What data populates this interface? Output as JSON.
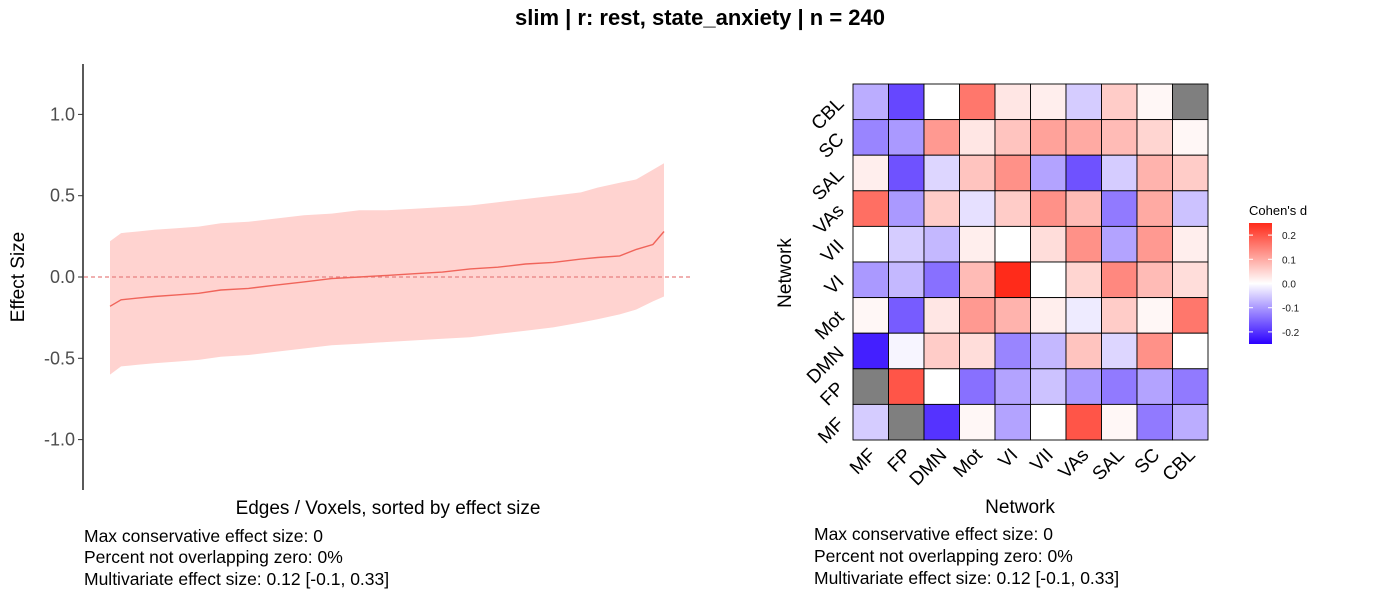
{
  "page_title": "slim | r: rest, state_anxiety | n = 240",
  "colors": {
    "ribbon": "#ffd3d0",
    "line": "#f0645a",
    "zero_line": "#e88080",
    "neg": "#2b00ff",
    "pos": "#ff2b1a",
    "na": "#7f7f7f"
  },
  "chart_data": [
    {
      "type": "line",
      "panel": "sorted effect sizes",
      "xlabel": "Edges / Voxels, sorted by effect size",
      "ylabel": "Effect Size",
      "ylim": [
        -1.3,
        1.3
      ],
      "yticks": [
        1.0,
        0.5,
        0.0,
        -0.5,
        -1.0
      ],
      "ytick_labels": [
        "1.0",
        "0.5",
        "0.0",
        "-0.5",
        "-1.0"
      ],
      "reference_line": 0,
      "grid": false,
      "series": [
        {
          "role": "estimate",
          "x": [
            0,
            0.02,
            0.05,
            0.08,
            0.12,
            0.16,
            0.2,
            0.25,
            0.3,
            0.35,
            0.4,
            0.45,
            0.5,
            0.55,
            0.6,
            0.65,
            0.7,
            0.75,
            0.8,
            0.85,
            0.88,
            0.92,
            0.95,
            0.98,
            1
          ],
          "y": [
            -0.18,
            -0.14,
            -0.13,
            -0.12,
            -0.11,
            -0.1,
            -0.08,
            -0.07,
            -0.05,
            -0.03,
            -0.01,
            0.0,
            0.01,
            0.02,
            0.03,
            0.05,
            0.06,
            0.08,
            0.09,
            0.11,
            0.12,
            0.13,
            0.17,
            0.2,
            0.28
          ]
        },
        {
          "role": "interval-upper",
          "x": [
            0,
            0.02,
            0.05,
            0.08,
            0.12,
            0.16,
            0.2,
            0.25,
            0.3,
            0.35,
            0.4,
            0.45,
            0.5,
            0.55,
            0.6,
            0.65,
            0.7,
            0.75,
            0.8,
            0.85,
            0.88,
            0.92,
            0.95,
            0.98,
            1
          ],
          "y": [
            0.22,
            0.27,
            0.28,
            0.29,
            0.3,
            0.31,
            0.33,
            0.34,
            0.36,
            0.38,
            0.39,
            0.41,
            0.41,
            0.42,
            0.43,
            0.44,
            0.46,
            0.48,
            0.5,
            0.52,
            0.55,
            0.58,
            0.6,
            0.66,
            0.7
          ]
        },
        {
          "role": "interval-lower",
          "x": [
            0,
            0.02,
            0.05,
            0.08,
            0.12,
            0.16,
            0.2,
            0.25,
            0.3,
            0.35,
            0.4,
            0.45,
            0.5,
            0.55,
            0.6,
            0.65,
            0.7,
            0.75,
            0.8,
            0.85,
            0.88,
            0.92,
            0.95,
            0.98,
            1
          ],
          "y": [
            -0.6,
            -0.55,
            -0.54,
            -0.53,
            -0.52,
            -0.51,
            -0.49,
            -0.48,
            -0.46,
            -0.44,
            -0.42,
            -0.41,
            -0.4,
            -0.39,
            -0.38,
            -0.37,
            -0.35,
            -0.33,
            -0.31,
            -0.28,
            -0.26,
            -0.23,
            -0.2,
            -0.15,
            -0.12
          ]
        }
      ],
      "notes": [
        "Max conservative effect size: 0",
        "Percent not overlapping zero: 0%",
        "Multivariate effect size: 0.12 [-0.1, 0.33]"
      ]
    },
    {
      "type": "heatmap",
      "panel": "network matrix",
      "xlabel": "Network",
      "ylabel": "Network",
      "x_categories": [
        "MF",
        "FP",
        "DMN",
        "Mot",
        "VI",
        "VII",
        "VAs",
        "SAL",
        "SC",
        "CBL"
      ],
      "y_categories": [
        "CBL",
        "SC",
        "SAL",
        "VAs",
        "VII",
        "VI",
        "Mot",
        "DMN",
        "FP",
        "MF"
      ],
      "values": [
        [
          -0.08,
          -0.18,
          0.0,
          0.16,
          0.03,
          0.02,
          -0.05,
          0.06,
          0.01,
          null
        ],
        [
          -0.12,
          -0.1,
          0.12,
          0.03,
          0.07,
          0.11,
          0.1,
          0.08,
          0.05,
          0.01
        ],
        [
          0.02,
          -0.17,
          -0.04,
          0.07,
          0.13,
          -0.09,
          -0.17,
          -0.05,
          0.09,
          0.06
        ],
        [
          0.17,
          -0.1,
          0.06,
          -0.03,
          0.06,
          0.13,
          0.08,
          -0.13,
          0.1,
          -0.06
        ],
        [
          0.0,
          -0.05,
          -0.07,
          0.02,
          0.0,
          0.04,
          0.13,
          -0.09,
          0.12,
          0.02
        ],
        [
          -0.1,
          -0.07,
          -0.14,
          0.08,
          0.25,
          0.0,
          0.05,
          0.14,
          0.08,
          0.04
        ],
        [
          0.01,
          -0.16,
          0.03,
          0.12,
          0.09,
          0.02,
          -0.02,
          0.06,
          0.01,
          0.16
        ],
        [
          -0.22,
          -0.01,
          0.06,
          0.04,
          -0.12,
          -0.07,
          0.07,
          -0.04,
          0.13,
          0.0
        ],
        [
          null,
          0.2,
          0.0,
          -0.14,
          -0.09,
          -0.06,
          -0.1,
          -0.13,
          -0.09,
          -0.13
        ],
        [
          -0.05,
          null,
          -0.2,
          0.01,
          -0.09,
          0.0,
          0.2,
          0.01,
          -0.13,
          -0.08
        ]
      ],
      "legend": {
        "title": "Cohen's d",
        "range": [
          -0.25,
          0.25
        ],
        "ticks": [
          0.2,
          0.1,
          0.0,
          -0.1,
          -0.2
        ],
        "tick_labels": [
          "0.2",
          "0.1",
          "0.0",
          "-0.1",
          "-0.2"
        ],
        "placement": "right"
      },
      "notes": [
        "Max conservative effect size: 0",
        "Percent not overlapping zero: 0%",
        "Multivariate effect size: 0.12 [-0.1, 0.33]"
      ]
    }
  ]
}
